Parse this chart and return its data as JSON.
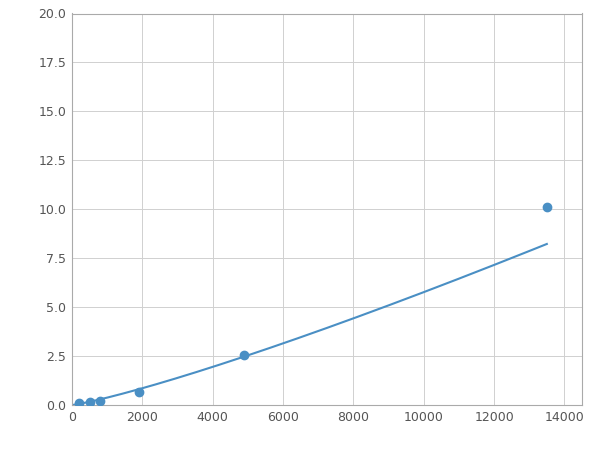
{
  "x_points": [
    200,
    500,
    800,
    1900,
    4900,
    13500
  ],
  "y_points": [
    0.08,
    0.15,
    0.22,
    0.65,
    2.55,
    10.1
  ],
  "line_color": "#4a8fc4",
  "marker_indices": [
    0,
    1,
    2,
    3,
    4,
    5
  ],
  "marker_color": "#4a8fc4",
  "marker_size": 6,
  "linewidth": 1.5,
  "xlim": [
    0,
    14500
  ],
  "ylim": [
    0,
    20
  ],
  "xticks": [
    0,
    2000,
    4000,
    6000,
    8000,
    10000,
    12000,
    14000
  ],
  "yticks": [
    0.0,
    2.5,
    5.0,
    7.5,
    10.0,
    12.5,
    15.0,
    17.5,
    20.0
  ],
  "grid_color": "#d0d0d0",
  "background_color": "#ffffff",
  "figure_background": "#ffffff"
}
